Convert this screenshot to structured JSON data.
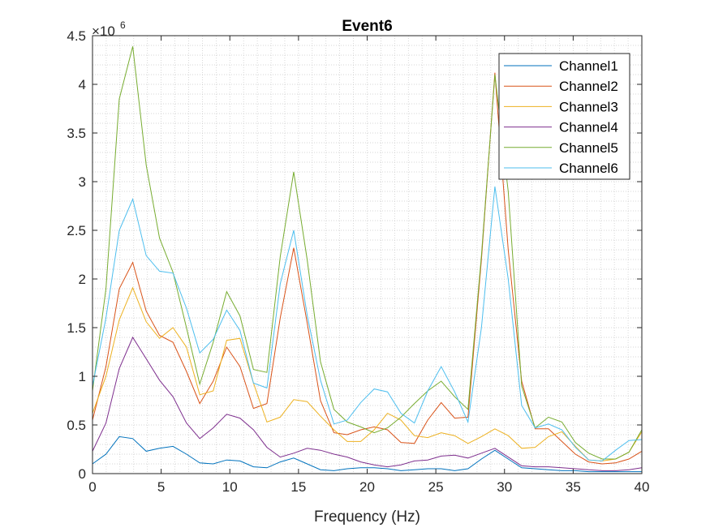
{
  "chart_data": {
    "type": "line",
    "title": "Event6",
    "xlabel": "Frequency (Hz)",
    "ylabel": "",
    "y_exponent_label": "×10",
    "y_exponent_power": "6",
    "xlim": [
      0,
      40
    ],
    "ylim": [
      0,
      4.5
    ],
    "x_ticks": [
      0,
      5,
      10,
      15,
      20,
      25,
      30,
      35,
      40
    ],
    "x_tick_labels": [
      "0",
      "5",
      "10",
      "15",
      "20",
      "25",
      "30",
      "35",
      "40"
    ],
    "y_ticks": [
      0,
      0.5,
      1,
      1.5,
      2,
      2.5,
      3,
      3.5,
      4,
      4.5
    ],
    "y_tick_labels": [
      "0",
      "0.5",
      "1",
      "1.5",
      "2",
      "2.5",
      "3",
      "3.5",
      "4",
      "4.5"
    ],
    "grid": "minor dotted",
    "legend_position": "top-right",
    "x": [
      0,
      0.98,
      1.95,
      2.93,
      3.91,
      4.88,
      5.86,
      6.84,
      7.81,
      8.79,
      9.77,
      10.74,
      11.72,
      12.7,
      13.67,
      14.65,
      15.63,
      16.6,
      17.58,
      18.55,
      19.53,
      20.51,
      21.48,
      22.46,
      23.44,
      24.41,
      25.39,
      26.37,
      27.34,
      28.32,
      29.3,
      30.27,
      31.25,
      32.23,
      33.2,
      34.18,
      35.16,
      36.13,
      37.11,
      38.09,
      39.06,
      40.04
    ],
    "series": [
      {
        "name": "Channel1",
        "color": "#0072BD",
        "values": [
          0.1,
          0.2,
          0.38,
          0.36,
          0.23,
          0.26,
          0.28,
          0.2,
          0.11,
          0.1,
          0.14,
          0.13,
          0.07,
          0.06,
          0.12,
          0.16,
          0.1,
          0.04,
          0.03,
          0.05,
          0.06,
          0.06,
          0.05,
          0.03,
          0.04,
          0.05,
          0.05,
          0.03,
          0.05,
          0.15,
          0.24,
          0.15,
          0.06,
          0.05,
          0.04,
          0.03,
          0.03,
          0.02,
          0.02,
          0.02,
          0.02,
          0.02
        ]
      },
      {
        "name": "Channel2",
        "color": "#D95319",
        "values": [
          0.55,
          1.1,
          1.9,
          2.17,
          1.67,
          1.42,
          1.35,
          1.05,
          0.72,
          0.95,
          1.3,
          1.1,
          0.67,
          0.72,
          1.6,
          2.32,
          1.55,
          0.75,
          0.42,
          0.4,
          0.45,
          0.48,
          0.45,
          0.32,
          0.31,
          0.55,
          0.73,
          0.57,
          0.58,
          2.2,
          4.12,
          2.3,
          0.95,
          0.46,
          0.46,
          0.33,
          0.2,
          0.12,
          0.1,
          0.11,
          0.15,
          0.23
        ]
      },
      {
        "name": "Channel3",
        "color": "#EDB120",
        "values": [
          0.62,
          1.0,
          1.58,
          1.91,
          1.56,
          1.39,
          1.5,
          1.3,
          0.81,
          0.85,
          1.37,
          1.39,
          0.93,
          0.53,
          0.58,
          0.76,
          0.74,
          0.59,
          0.45,
          0.33,
          0.33,
          0.45,
          0.62,
          0.55,
          0.39,
          0.37,
          0.42,
          0.39,
          0.31,
          0.38,
          0.46,
          0.39,
          0.26,
          0.27,
          0.38,
          0.43,
          0.28,
          0.14,
          0.13,
          0.15,
          0.22,
          0.43
        ]
      },
      {
        "name": "Channel4",
        "color": "#7E2F8E",
        "values": [
          0.23,
          0.52,
          1.08,
          1.4,
          1.18,
          0.96,
          0.79,
          0.52,
          0.36,
          0.47,
          0.61,
          0.57,
          0.45,
          0.27,
          0.17,
          0.21,
          0.26,
          0.24,
          0.2,
          0.17,
          0.12,
          0.09,
          0.07,
          0.09,
          0.13,
          0.14,
          0.18,
          0.19,
          0.16,
          0.21,
          0.26,
          0.17,
          0.08,
          0.07,
          0.07,
          0.06,
          0.05,
          0.04,
          0.03,
          0.03,
          0.04,
          0.06
        ]
      },
      {
        "name": "Channel5",
        "color": "#77AC30",
        "values": [
          0.85,
          1.9,
          3.85,
          4.39,
          3.17,
          2.42,
          2.07,
          1.5,
          0.92,
          1.35,
          1.87,
          1.62,
          1.07,
          1.04,
          2.23,
          3.1,
          2.2,
          1.15,
          0.66,
          0.53,
          0.48,
          0.42,
          0.47,
          0.58,
          0.72,
          0.85,
          0.95,
          0.79,
          0.66,
          2.24,
          4.1,
          2.9,
          0.9,
          0.47,
          0.58,
          0.53,
          0.32,
          0.21,
          0.15,
          0.15,
          0.22,
          0.45
        ]
      },
      {
        "name": "Channel6",
        "color": "#4DBEEE",
        "values": [
          0.9,
          1.6,
          2.5,
          2.82,
          2.24,
          2.08,
          2.06,
          1.7,
          1.24,
          1.38,
          1.68,
          1.47,
          0.93,
          0.88,
          1.95,
          2.5,
          1.63,
          0.96,
          0.51,
          0.55,
          0.73,
          0.87,
          0.84,
          0.62,
          0.52,
          0.85,
          1.1,
          0.84,
          0.53,
          1.5,
          2.95,
          2.0,
          0.7,
          0.47,
          0.51,
          0.45,
          0.27,
          0.14,
          0.13,
          0.24,
          0.34,
          0.35
        ]
      }
    ]
  }
}
